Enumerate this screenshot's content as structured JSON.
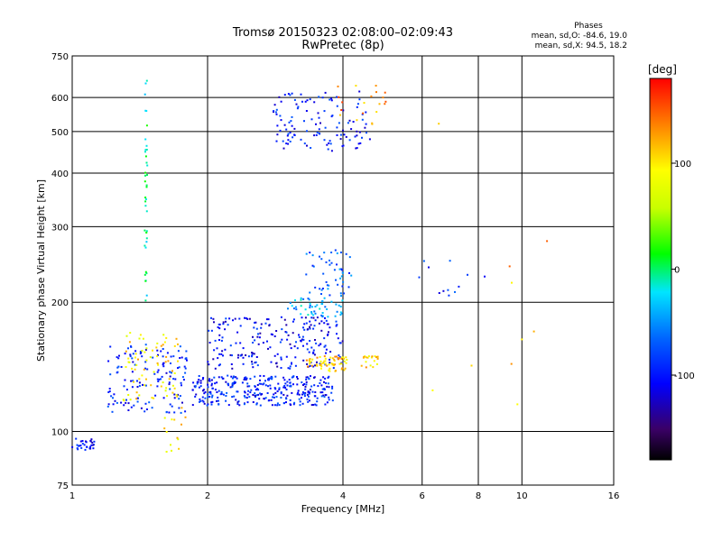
{
  "chart_data": {
    "type": "scatter",
    "title": "Tromsø 20150323 02:08:00–02:09:43",
    "subtitle": "RwPretec (8p)",
    "phases_title": "Phases",
    "phases_line1": "mean, sd,O: -84.6, 19.0",
    "phases_line2": "mean, sd,X:  94.5, 18.2",
    "xlabel": "Frequency [MHz]",
    "ylabel": "Stationary phase Virtual Height [km]",
    "x_scale": "log",
    "y_scale": "log",
    "xlim": [
      1,
      16
    ],
    "ylim": [
      75,
      750
    ],
    "x_ticks": [
      1,
      2,
      4,
      6,
      8,
      10,
      16
    ],
    "y_ticks": [
      75,
      100,
      200,
      300,
      400,
      500,
      600,
      750
    ],
    "x_gridlines": [
      2,
      4,
      6,
      8,
      10
    ],
    "y_gridlines": [
      100,
      200,
      300,
      400,
      500,
      600
    ],
    "grid": true,
    "colorbar": {
      "label": "[deg]",
      "min": -180,
      "max": 180,
      "ticks": [
        -100,
        0,
        100
      ],
      "placement": "right"
    },
    "clusters": [
      {
        "fmin": 1.0,
        "fmax": 1.12,
        "hmin": 90,
        "hmax": 97,
        "n": 30,
        "phase": -100
      },
      {
        "fmin": 1.45,
        "fmax": 1.47,
        "hmin": 200,
        "hmax": 660,
        "n": 40,
        "phase": -10
      },
      {
        "fmin": 1.2,
        "fmax": 1.8,
        "hmin": 110,
        "hmax": 160,
        "n": 140,
        "phase": -95
      },
      {
        "fmin": 1.3,
        "fmax": 1.75,
        "hmin": 118,
        "hmax": 175,
        "n": 70,
        "phase": 100
      },
      {
        "fmin": 1.6,
        "fmax": 1.8,
        "hmin": 85,
        "hmax": 115,
        "n": 14,
        "phase": 100
      },
      {
        "fmin": 1.85,
        "fmax": 3.8,
        "hmin": 115,
        "hmax": 135,
        "n": 320,
        "phase": -95
      },
      {
        "fmin": 2.0,
        "fmax": 4.0,
        "hmin": 140,
        "hmax": 185,
        "n": 220,
        "phase": -105
      },
      {
        "fmin": 3.3,
        "fmax": 4.1,
        "hmin": 138,
        "hmax": 150,
        "n": 60,
        "phase": 110
      },
      {
        "fmin": 4.4,
        "fmax": 4.8,
        "hmin": 140,
        "hmax": 150,
        "n": 20,
        "phase": 110
      },
      {
        "fmin": 3.0,
        "fmax": 4.0,
        "hmin": 185,
        "hmax": 205,
        "n": 50,
        "phase": -40
      },
      {
        "fmin": 3.3,
        "fmax": 4.2,
        "hmin": 205,
        "hmax": 265,
        "n": 50,
        "phase": -70
      },
      {
        "fmin": 2.8,
        "fmax": 4.6,
        "hmin": 450,
        "hmax": 620,
        "n": 120,
        "phase": -100
      },
      {
        "fmin": 3.8,
        "fmax": 5.0,
        "hmin": 520,
        "hmax": 640,
        "n": 20,
        "phase": 130
      },
      {
        "fmin": 5.5,
        "fmax": 8.5,
        "hmin": 200,
        "hmax": 250,
        "n": 12,
        "phase": -90
      },
      {
        "fmin": 6.0,
        "fmax": 12.0,
        "hmin": 90,
        "hmax": 600,
        "n": 10,
        "phase": 120
      }
    ]
  }
}
